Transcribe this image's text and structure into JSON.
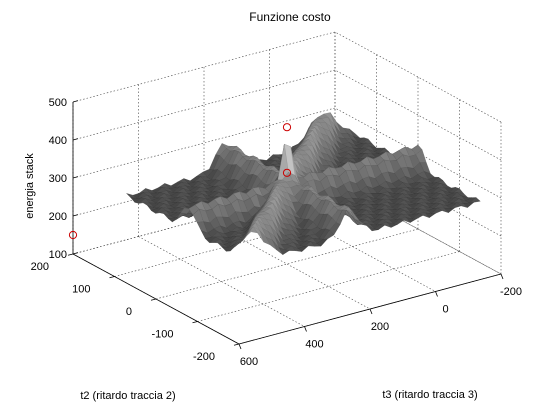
{
  "chart_data": {
    "type": "surface",
    "title": "Funzione costo",
    "zlabel": "energia stack",
    "xlabel": "t3 (ritardo traccia 3)",
    "ylabel": "t2 (ritardo traccia 2)",
    "z_ticks": [
      "100",
      "200",
      "300",
      "400",
      "500"
    ],
    "t3_ticks": [
      "-200",
      "0",
      "200",
      "400",
      "600"
    ],
    "t2_ticks": [
      "200",
      "100",
      "0",
      "-100",
      "-200"
    ],
    "zlim": [
      100,
      500
    ],
    "t3_lim": [
      -200,
      600
    ],
    "t2_lim": [
      -200,
      200
    ],
    "grid": true,
    "colormap": "gray",
    "baseline_energy": 260,
    "ridges": [
      {
        "direction": "along t3",
        "height": 320
      },
      {
        "direction": "along t2",
        "height": 330
      },
      {
        "direction": "diagonal",
        "height": 340
      }
    ],
    "peak": {
      "t3": 200,
      "t2": 0,
      "energy": 460
    },
    "markers": [
      {
        "t3": 200,
        "t2": 0,
        "energy": 460,
        "symbol": "o",
        "color": "#cc0000"
      },
      {
        "t3": 200,
        "t2": 0,
        "energy": 340,
        "symbol": "o",
        "color": "#cc0000"
      },
      {
        "t3": 600,
        "t2": 200,
        "energy": 150,
        "symbol": "o",
        "color": "#cc0000"
      }
    ]
  }
}
